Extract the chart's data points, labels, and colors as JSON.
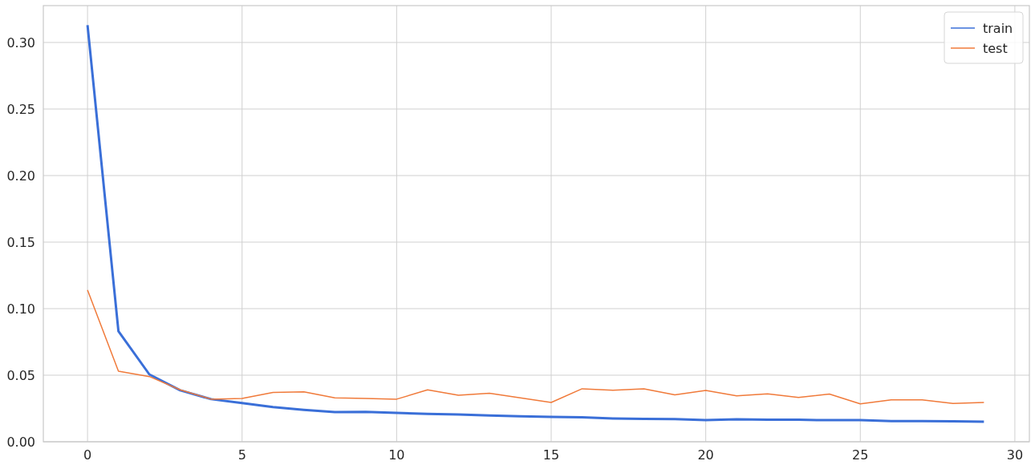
{
  "chart_data": {
    "type": "line",
    "x": [
      0,
      1,
      2,
      3,
      4,
      5,
      6,
      7,
      8,
      9,
      10,
      11,
      12,
      13,
      14,
      15,
      16,
      17,
      18,
      19,
      20,
      21,
      22,
      23,
      24,
      25,
      26,
      27,
      28,
      29
    ],
    "series": [
      {
        "name": "train",
        "color": "#3a6fd8",
        "values": [
          0.313,
          0.083,
          0.0506,
          0.0386,
          0.032,
          0.029,
          0.026,
          0.024,
          0.0223,
          0.0225,
          0.0217,
          0.021,
          0.0205,
          0.0198,
          0.0192,
          0.0187,
          0.0183,
          0.0175,
          0.0172,
          0.017,
          0.0163,
          0.0168,
          0.0165,
          0.0165,
          0.0162,
          0.0162,
          0.0155,
          0.0155,
          0.0153,
          0.015
        ]
      },
      {
        "name": "test",
        "color": "#f07a3a",
        "values": [
          0.114,
          0.053,
          0.049,
          0.039,
          0.032,
          0.0325,
          0.037,
          0.0375,
          0.033,
          0.0325,
          0.032,
          0.039,
          0.035,
          0.0365,
          0.033,
          0.0295,
          0.0398,
          0.0387,
          0.0397,
          0.0352,
          0.0385,
          0.0345,
          0.036,
          0.0333,
          0.0358,
          0.0285,
          0.0315,
          0.0315,
          0.0288,
          0.0295
        ]
      }
    ],
    "xlim": [
      -1.43,
      30.47
    ],
    "xticks": [
      0,
      5,
      10,
      15,
      20,
      25,
      30
    ],
    "ylim": [
      0,
      0.3277
    ],
    "yticks": [
      {
        "value": 0,
        "label": "0.00"
      },
      {
        "value": 0.05,
        "label": "0.05"
      },
      {
        "value": 0.1,
        "label": "0.10"
      },
      {
        "value": 0.15,
        "label": "0.15"
      },
      {
        "value": 0.2,
        "label": "0.20"
      },
      {
        "value": 0.25,
        "label": "0.25"
      },
      {
        "value": 0.3,
        "label": "0.30"
      }
    ],
    "grid": true,
    "legend": "top right"
  }
}
